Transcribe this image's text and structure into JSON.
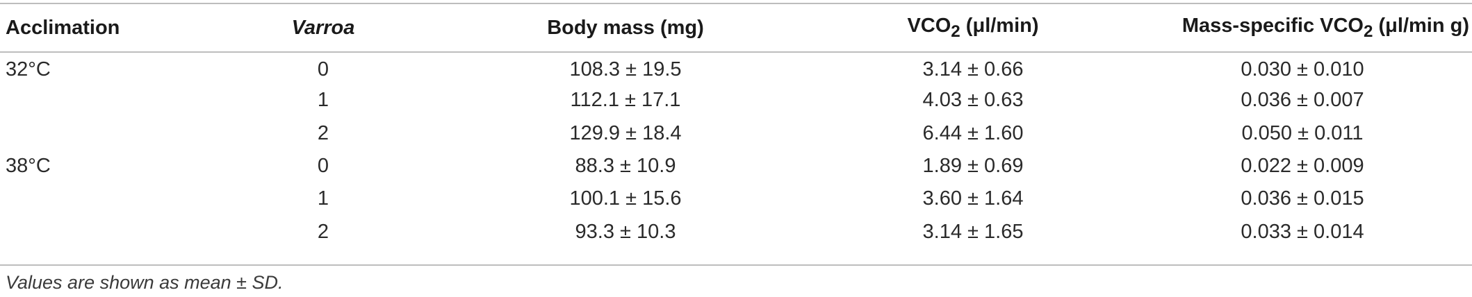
{
  "table": {
    "headers": {
      "acclimation": "Acclimation",
      "varroa": "Varroa",
      "body_mass": "Body mass (mg)",
      "vco2_main": "VCO",
      "vco2_sub": "2",
      "vco2_unit": " (μl/min)",
      "ms_main": "Mass-specific VCO",
      "ms_sub": "2",
      "ms_unit": " (μl/min g)"
    },
    "rows": [
      {
        "acclimation": "32°C",
        "varroa": "0",
        "body_mass": "108.3 ± 19.5",
        "vco2": "3.14 ± 0.66",
        "mass_specific_vco2": "0.030 ± 0.010"
      },
      {
        "acclimation": "",
        "varroa": "1",
        "body_mass": "112.1 ± 17.1",
        "vco2": "4.03 ± 0.63",
        "mass_specific_vco2": "0.036 ± 0.007"
      },
      {
        "acclimation": "",
        "varroa": "2",
        "body_mass": "129.9 ± 18.4",
        "vco2": "6.44 ± 1.60",
        "mass_specific_vco2": "0.050 ± 0.011"
      },
      {
        "acclimation": "38°C",
        "varroa": "0",
        "body_mass": "88.3 ± 10.9",
        "vco2": "1.89 ± 0.69",
        "mass_specific_vco2": "0.022 ± 0.009"
      },
      {
        "acclimation": "",
        "varroa": "1",
        "body_mass": "100.1 ± 15.6",
        "vco2": "3.60 ± 1.64",
        "mass_specific_vco2": "0.036 ± 0.015"
      },
      {
        "acclimation": "",
        "varroa": "2",
        "body_mass": "93.3 ± 10.3",
        "vco2": "3.14 ± 1.65",
        "mass_specific_vco2": "0.033 ± 0.014"
      }
    ],
    "footnote": "Values are shown as mean ± SD."
  }
}
